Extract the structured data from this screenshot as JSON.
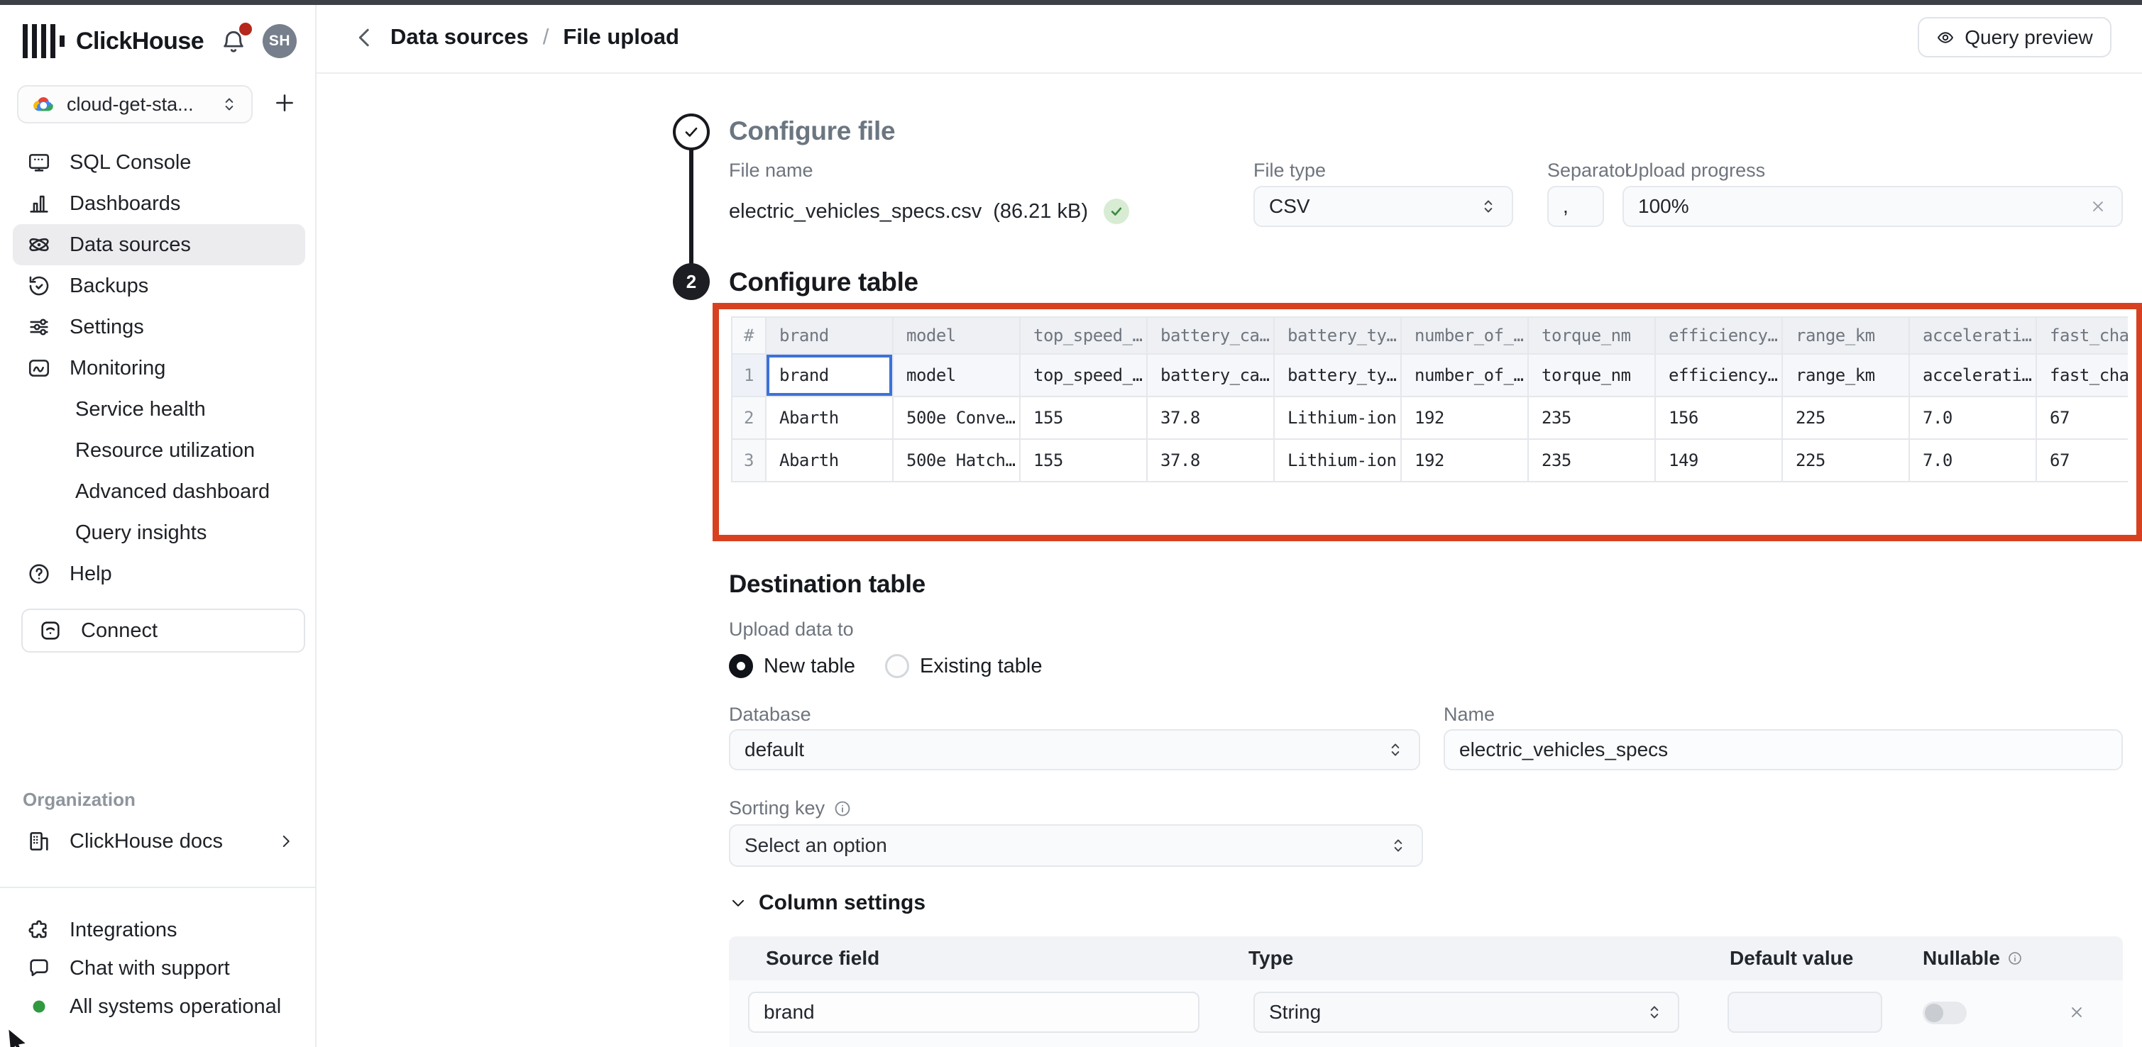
{
  "colors": {
    "accent_red": "#d8411f",
    "selected_cell_blue": "#3c72d9",
    "status_green": "#2f9a3f",
    "notification_red": "#b5281d"
  },
  "topbar": {
    "logo_text": "ClickHouse",
    "avatar_initials": "SH"
  },
  "sidebar": {
    "service_selector": {
      "value": "cloud-get-sta...",
      "icon": "gcp-cloud-icon"
    },
    "items": [
      {
        "label": "SQL Console",
        "icon": "terminal-icon"
      },
      {
        "label": "Dashboards",
        "icon": "bar-chart-icon"
      },
      {
        "label": "Data sources",
        "icon": "orbit-icon",
        "selected": true
      },
      {
        "label": "Backups",
        "icon": "history-icon"
      },
      {
        "label": "Settings",
        "icon": "sliders-icon"
      },
      {
        "label": "Monitoring",
        "icon": "monitor-wave-icon"
      },
      {
        "label": "Service health",
        "indent": true
      },
      {
        "label": "Resource utilization",
        "indent": true
      },
      {
        "label": "Advanced dashboard",
        "indent": true
      },
      {
        "label": "Query insights",
        "indent": true
      },
      {
        "label": "Help",
        "icon": "help-circle-icon"
      }
    ],
    "connect_button": {
      "label": "Connect",
      "icon": "connect-icon"
    },
    "organization_label": "Organization",
    "docs_item": {
      "label": "ClickHouse docs",
      "icon": "docs-building-icon"
    },
    "footer_items": [
      {
        "label": "Integrations",
        "icon": "puzzle-icon"
      },
      {
        "label": "Chat with support",
        "icon": "chat-icon"
      },
      {
        "label": "All systems operational",
        "icon": "green-dot"
      }
    ]
  },
  "breadcrumb": {
    "items": [
      "Data sources",
      "File upload"
    ],
    "separator": "/"
  },
  "query_preview_button": {
    "label": "Query preview"
  },
  "configure_file": {
    "title": "Configure file",
    "file_name_label": "File name",
    "file_name_value": "electric_vehicles_specs.csv",
    "file_size": "(86.21 kB)",
    "file_type_label": "File type",
    "file_type_value": "CSV",
    "separator_label": "Separator",
    "separator_value": ",",
    "upload_progress_label": "Upload progress",
    "upload_progress_value": "100%"
  },
  "configure_table": {
    "step_number": "2",
    "title": "Configure table",
    "preview_table": {
      "headers": [
        "#",
        "brand",
        "model",
        "top_speed_…",
        "battery_ca…",
        "battery_ty…",
        "number_of_…",
        "torque_nm",
        "efficiency…",
        "range_km",
        "accelerati…",
        "fast_cha"
      ],
      "rows": [
        {
          "index": "1",
          "highlight": true,
          "selected_cell": 0,
          "cells": [
            "brand",
            "model",
            "top_speed_…",
            "battery_ca…",
            "battery_ty…",
            "number_of_…",
            "torque_nm",
            "efficiency…",
            "range_km",
            "accelerati…",
            "fast_cha"
          ]
        },
        {
          "index": "2",
          "cells": [
            "Abarth",
            "500e Conve…",
            "155",
            "37.8",
            "Lithium-ion",
            "192",
            "235",
            "156",
            "225",
            "7.0",
            "67"
          ]
        },
        {
          "index": "3",
          "cells": [
            "Abarth",
            "500e Hatch…",
            "155",
            "37.8",
            "Lithium-ion",
            "192",
            "235",
            "149",
            "225",
            "7.0",
            "67"
          ]
        }
      ]
    }
  },
  "destination_table": {
    "title": "Destination table",
    "upload_data_to_label": "Upload data to",
    "radio_options": [
      {
        "label": "New table",
        "selected": true
      },
      {
        "label": "Existing table",
        "selected": false
      }
    ],
    "database_label": "Database",
    "database_value": "default",
    "name_label": "Name",
    "name_value": "electric_vehicles_specs",
    "sorting_key_label": "Sorting key",
    "sorting_key_placeholder": "Select an option"
  },
  "column_settings": {
    "title": "Column settings",
    "headers": [
      "Source field",
      "Type",
      "Default value",
      "Nullable"
    ],
    "rows": [
      {
        "source_field": "brand",
        "type": "String",
        "default_value": "",
        "nullable": false
      }
    ]
  }
}
